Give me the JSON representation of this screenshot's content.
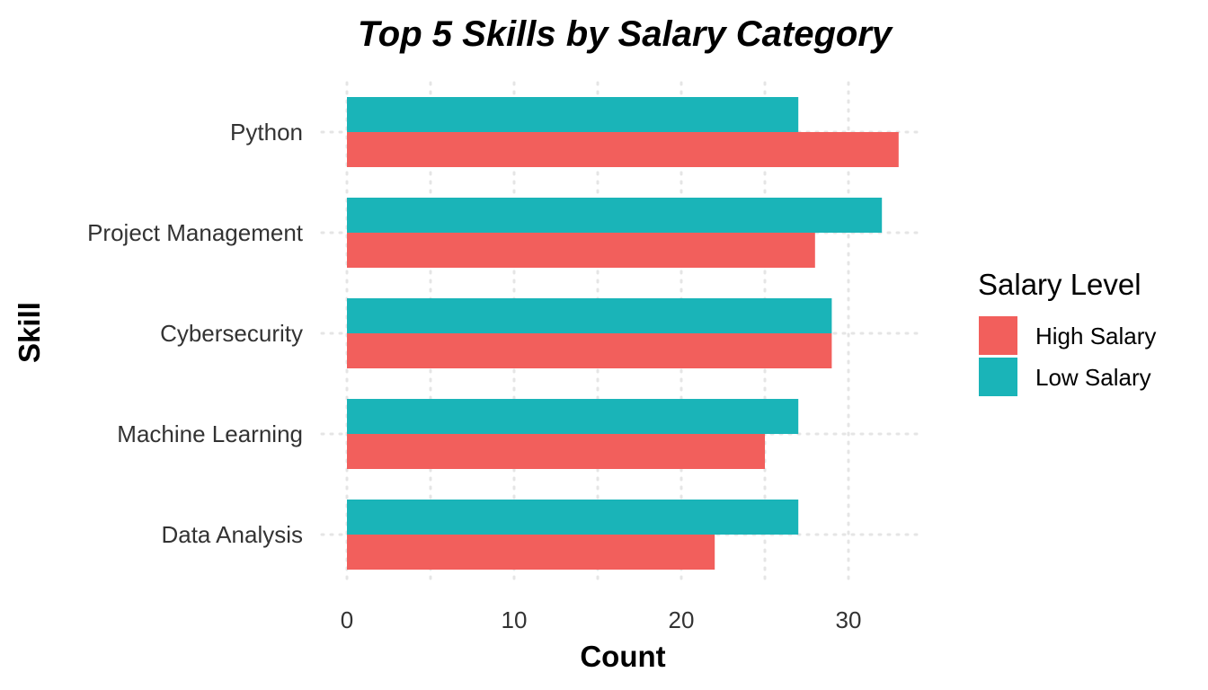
{
  "chart_data": {
    "type": "bar",
    "orientation": "horizontal",
    "title": "Top 5 Skills by Salary Category",
    "xlabel": "Count",
    "ylabel": "Skill",
    "categories": [
      "Data Analysis",
      "Machine Learning",
      "Cybersecurity",
      "Project Management",
      "Python"
    ],
    "series": [
      {
        "name": "High Salary",
        "color": "#F25F5C",
        "values": [
          22,
          25,
          29,
          28,
          33
        ]
      },
      {
        "name": "Low Salary",
        "color": "#1AB4B8",
        "values": [
          27,
          27,
          29,
          32,
          27
        ]
      }
    ],
    "xlim": [
      0,
      34.5
    ],
    "xticks": [
      0,
      10,
      20,
      30
    ],
    "xtick_labels": [
      "0",
      "10",
      "20",
      "30"
    ],
    "grid": true,
    "grid_style": "dotted",
    "legend": {
      "title": "Salary Level",
      "position": "right",
      "entries": [
        "High Salary",
        "Low Salary"
      ]
    }
  }
}
